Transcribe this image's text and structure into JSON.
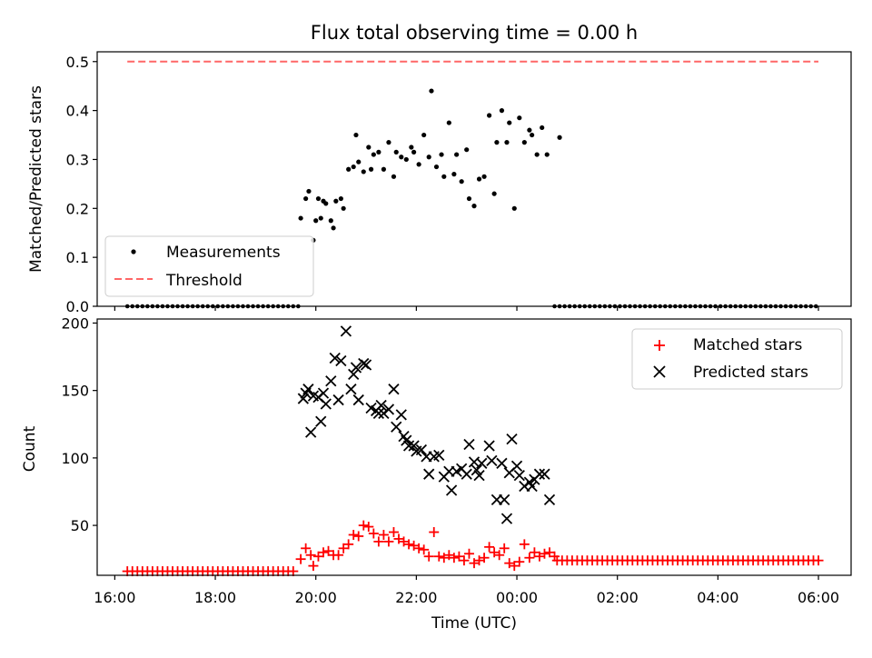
{
  "chart_data": {
    "title": "Flux total observing time = 0.00 h",
    "xlabel": "Time (UTC)",
    "x_unit": "hours after 00:00 of the first night",
    "xlim": [
      15.65,
      30.65
    ],
    "xticks": [
      {
        "value": 16,
        "label": "16:00"
      },
      {
        "value": 18,
        "label": "18:00"
      },
      {
        "value": 20,
        "label": "20:00"
      },
      {
        "value": 22,
        "label": "22:00"
      },
      {
        "value": 24,
        "label": "00:00"
      },
      {
        "value": 26,
        "label": "02:00"
      },
      {
        "value": 28,
        "label": "04:00"
      },
      {
        "value": 30,
        "label": "06:00"
      }
    ],
    "panels": [
      {
        "id": "ratio",
        "type": "scatter",
        "ylabel": "Matched/Predicted stars",
        "ylim": [
          0,
          0.52
        ],
        "yticks": [
          {
            "value": 0.0,
            "label": "0.0"
          },
          {
            "value": 0.1,
            "label": "0.1"
          },
          {
            "value": 0.2,
            "label": "0.2"
          },
          {
            "value": 0.3,
            "label": "0.3"
          },
          {
            "value": 0.4,
            "label": "0.4"
          },
          {
            "value": 0.5,
            "label": "0.5"
          }
        ],
        "legend": {
          "position": "lower-left",
          "entries": [
            "Measurements",
            "Threshold"
          ]
        },
        "series": [
          {
            "name": "Measurements",
            "marker": "dot",
            "color": "#000000",
            "zeros_from": [
              16.25,
              19.7,
              0.1
            ],
            "zeros_from_2": [
              24.75,
              30.0,
              0.1
            ],
            "points": [
              [
                19.7,
                0.18
              ],
              [
                19.8,
                0.22
              ],
              [
                19.86,
                0.235
              ],
              [
                19.95,
                0.135
              ],
              [
                20.0,
                0.175
              ],
              [
                20.05,
                0.22
              ],
              [
                20.1,
                0.18
              ],
              [
                20.15,
                0.215
              ],
              [
                20.2,
                0.21
              ],
              [
                20.3,
                0.175
              ],
              [
                20.35,
                0.16
              ],
              [
                20.4,
                0.215
              ],
              [
                20.5,
                0.22
              ],
              [
                20.55,
                0.2
              ],
              [
                20.65,
                0.28
              ],
              [
                20.75,
                0.285
              ],
              [
                20.8,
                0.35
              ],
              [
                20.85,
                0.295
              ],
              [
                20.95,
                0.275
              ],
              [
                21.05,
                0.325
              ],
              [
                21.1,
                0.28
              ],
              [
                21.15,
                0.31
              ],
              [
                21.25,
                0.315
              ],
              [
                21.35,
                0.28
              ],
              [
                21.45,
                0.335
              ],
              [
                21.55,
                0.265
              ],
              [
                21.6,
                0.315
              ],
              [
                21.7,
                0.305
              ],
              [
                21.8,
                0.3
              ],
              [
                21.9,
                0.325
              ],
              [
                21.95,
                0.315
              ],
              [
                22.05,
                0.29
              ],
              [
                22.15,
                0.35
              ],
              [
                22.25,
                0.305
              ],
              [
                22.3,
                0.44
              ],
              [
                22.4,
                0.285
              ],
              [
                22.5,
                0.31
              ],
              [
                22.55,
                0.265
              ],
              [
                22.65,
                0.375
              ],
              [
                22.75,
                0.27
              ],
              [
                22.8,
                0.31
              ],
              [
                22.9,
                0.255
              ],
              [
                23.0,
                0.32
              ],
              [
                23.05,
                0.22
              ],
              [
                23.15,
                0.205
              ],
              [
                23.25,
                0.26
              ],
              [
                23.35,
                0.265
              ],
              [
                23.45,
                0.39
              ],
              [
                23.55,
                0.23
              ],
              [
                23.6,
                0.335
              ],
              [
                23.7,
                0.4
              ],
              [
                23.8,
                0.335
              ],
              [
                23.85,
                0.375
              ],
              [
                23.95,
                0.2
              ],
              [
                24.05,
                0.385
              ],
              [
                24.15,
                0.335
              ],
              [
                24.25,
                0.36
              ],
              [
                24.3,
                0.35
              ],
              [
                24.4,
                0.31
              ],
              [
                24.5,
                0.365
              ],
              [
                24.6,
                0.31
              ],
              [
                24.85,
                0.345
              ]
            ]
          },
          {
            "name": "Threshold",
            "type": "line",
            "style": "dashed",
            "color": "#ff6666",
            "x": [
              16.25,
              30.0
            ],
            "y": [
              0.5,
              0.5
            ]
          }
        ]
      },
      {
        "id": "count",
        "type": "scatter",
        "ylabel": "Count",
        "ylim": [
          13,
          203
        ],
        "yticks": [
          {
            "value": 50,
            "label": "50"
          },
          {
            "value": 100,
            "label": "100"
          },
          {
            "value": 150,
            "label": "150"
          },
          {
            "value": 200,
            "label": "200"
          }
        ],
        "legend": {
          "position": "top-right",
          "entries": [
            "Matched stars",
            "Predicted stars"
          ]
        },
        "series": [
          {
            "name": "Matched stars",
            "marker": "plus",
            "color": "#ff0000",
            "baseline_segments": [
              {
                "from": 16.25,
                "to": 19.6,
                "step": 0.1,
                "value": 16
              },
              {
                "from": 24.8,
                "to": 30.0,
                "step": 0.1,
                "value": 24
              }
            ],
            "points": [
              [
                19.7,
                25
              ],
              [
                19.8,
                33
              ],
              [
                19.9,
                28
              ],
              [
                19.95,
                20
              ],
              [
                20.05,
                27
              ],
              [
                20.15,
                30
              ],
              [
                20.25,
                31
              ],
              [
                20.35,
                28
              ],
              [
                20.45,
                28
              ],
              [
                20.55,
                33
              ],
              [
                20.65,
                36
              ],
              [
                20.75,
                43
              ],
              [
                20.85,
                42
              ],
              [
                20.95,
                50
              ],
              [
                21.05,
                49
              ],
              [
                21.15,
                44
              ],
              [
                21.25,
                38
              ],
              [
                21.35,
                43
              ],
              [
                21.45,
                38
              ],
              [
                21.55,
                45
              ],
              [
                21.65,
                40
              ],
              [
                21.75,
                38
              ],
              [
                21.85,
                36
              ],
              [
                21.95,
                35
              ],
              [
                22.05,
                33
              ],
              [
                22.15,
                32
              ],
              [
                22.25,
                27
              ],
              [
                22.35,
                45
              ],
              [
                22.45,
                27
              ],
              [
                22.55,
                26
              ],
              [
                22.65,
                28
              ],
              [
                22.75,
                26
              ],
              [
                22.85,
                27
              ],
              [
                22.95,
                24
              ],
              [
                23.05,
                29
              ],
              [
                23.15,
                22
              ],
              [
                23.25,
                24
              ],
              [
                23.35,
                26
              ],
              [
                23.45,
                34
              ],
              [
                23.55,
                30
              ],
              [
                23.65,
                28
              ],
              [
                23.75,
                33
              ],
              [
                23.85,
                22
              ],
              [
                23.95,
                20
              ],
              [
                24.05,
                23
              ],
              [
                24.15,
                36
              ],
              [
                24.25,
                26
              ],
              [
                24.35,
                30
              ],
              [
                24.45,
                27
              ],
              [
                24.55,
                29
              ],
              [
                24.65,
                30
              ],
              [
                24.75,
                27
              ]
            ]
          },
          {
            "name": "Predicted stars",
            "marker": "x",
            "color": "#000000",
            "points": [
              [
                19.75,
                144
              ],
              [
                19.8,
                148
              ],
              [
                19.85,
                151
              ],
              [
                19.9,
                119
              ],
              [
                19.95,
                146
              ],
              [
                20.05,
                145
              ],
              [
                20.1,
                127
              ],
              [
                20.15,
                148
              ],
              [
                20.2,
                140
              ],
              [
                20.3,
                157
              ],
              [
                20.38,
                174
              ],
              [
                20.45,
                143
              ],
              [
                20.5,
                172
              ],
              [
                20.6,
                194
              ],
              [
                20.7,
                151
              ],
              [
                20.75,
                162
              ],
              [
                20.8,
                167
              ],
              [
                20.85,
                143
              ],
              [
                20.95,
                170
              ],
              [
                21.0,
                169
              ],
              [
                21.1,
                137
              ],
              [
                21.2,
                135
              ],
              [
                21.25,
                133
              ],
              [
                21.3,
                139
              ],
              [
                21.35,
                133
              ],
              [
                21.45,
                136
              ],
              [
                21.55,
                151
              ],
              [
                21.6,
                123
              ],
              [
                21.7,
                132
              ],
              [
                21.75,
                116
              ],
              [
                21.8,
                113
              ],
              [
                21.85,
                109
              ],
              [
                21.95,
                109
              ],
              [
                22.0,
                105
              ],
              [
                22.1,
                106
              ],
              [
                22.2,
                101
              ],
              [
                22.25,
                88
              ],
              [
                22.35,
                101
              ],
              [
                22.45,
                102
              ],
              [
                22.55,
                86
              ],
              [
                22.65,
                90
              ],
              [
                22.7,
                76
              ],
              [
                22.8,
                90
              ],
              [
                22.9,
                92
              ],
              [
                23.0,
                88
              ],
              [
                23.05,
                110
              ],
              [
                23.15,
                97
              ],
              [
                23.2,
                91
              ],
              [
                23.25,
                87
              ],
              [
                23.3,
                96
              ],
              [
                23.45,
                109
              ],
              [
                23.5,
                98
              ],
              [
                23.6,
                69
              ],
              [
                23.7,
                96
              ],
              [
                23.75,
                69
              ],
              [
                23.8,
                55
              ],
              [
                23.85,
                89
              ],
              [
                23.9,
                114
              ],
              [
                24.0,
                94
              ],
              [
                24.05,
                87
              ],
              [
                24.15,
                79
              ],
              [
                24.25,
                82
              ],
              [
                24.3,
                79
              ],
              [
                24.35,
                84
              ],
              [
                24.45,
                88
              ],
              [
                24.55,
                88
              ],
              [
                24.65,
                69
              ]
            ]
          }
        ]
      }
    ]
  }
}
